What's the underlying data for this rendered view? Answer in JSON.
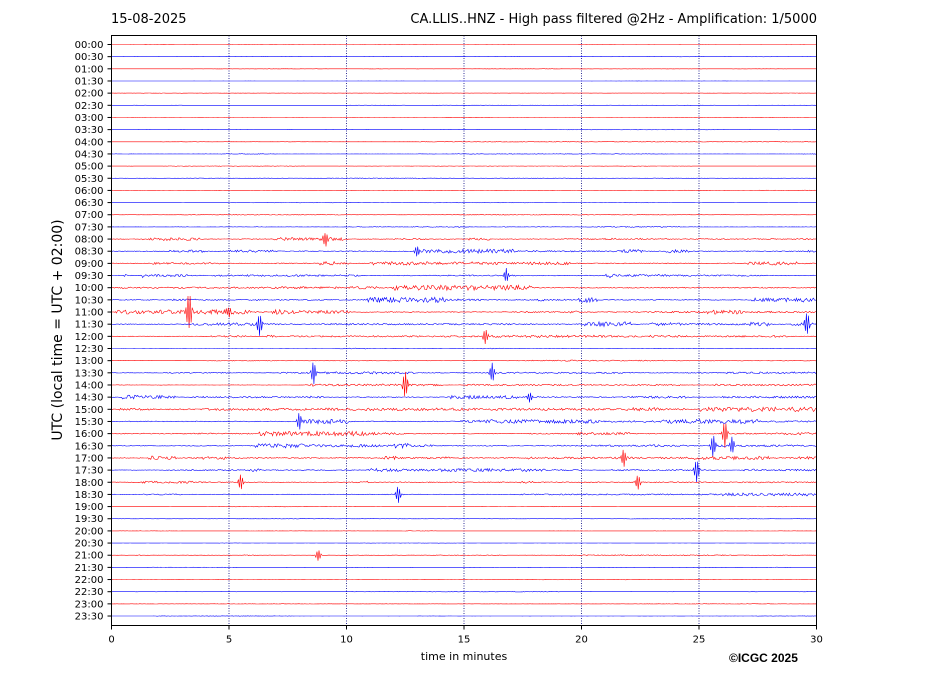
{
  "header": {
    "date": "15-08-2025",
    "title": "CA.LLIS..HNZ - High pass filtered @2Hz - Amplification: 1/5000"
  },
  "footer": {
    "copyright": "©ICGC 2025"
  },
  "chart_data": {
    "type": "line",
    "xlabel": "time in minutes",
    "ylabel": "UTC (local time = UTC + 02:00)",
    "xlim": [
      0,
      30
    ],
    "xticks": [
      0,
      5,
      10,
      15,
      20,
      25,
      30
    ],
    "grid": "vertical dotted lines at 5-minute intervals",
    "colors": {
      "even_rows": "#ff0000",
      "odd_rows": "#0000ff",
      "gridline": "#000080"
    },
    "rows": [
      {
        "label": "00:00",
        "activity": 0.05
      },
      {
        "label": "00:30",
        "activity": 0.05
      },
      {
        "label": "01:00",
        "activity": 0.05
      },
      {
        "label": "01:30",
        "activity": 0.05
      },
      {
        "label": "02:00",
        "activity": 0.05
      },
      {
        "label": "02:30",
        "activity": 0.05
      },
      {
        "label": "03:00",
        "activity": 0.05
      },
      {
        "label": "03:30",
        "activity": 0.08
      },
      {
        "label": "04:00",
        "activity": 0.08
      },
      {
        "label": "04:30",
        "activity": 0.1
      },
      {
        "label": "05:00",
        "activity": 0.08
      },
      {
        "label": "05:30",
        "activity": 0.1
      },
      {
        "label": "06:00",
        "activity": 0.1
      },
      {
        "label": "06:30",
        "activity": 0.1
      },
      {
        "label": "07:00",
        "activity": 0.15
      },
      {
        "label": "07:30",
        "activity": 0.2
      },
      {
        "label": "08:00",
        "activity": 0.6
      },
      {
        "label": "08:30",
        "activity": 0.9
      },
      {
        "label": "09:00",
        "activity": 0.8
      },
      {
        "label": "09:30",
        "activity": 0.8
      },
      {
        "label": "10:00",
        "activity": 0.85
      },
      {
        "label": "10:30",
        "activity": 0.95
      },
      {
        "label": "11:00",
        "activity": 0.85
      },
      {
        "label": "11:30",
        "activity": 0.9
      },
      {
        "label": "12:00",
        "activity": 0.4
      },
      {
        "label": "12:30",
        "activity": 0.2
      },
      {
        "label": "13:00",
        "activity": 0.2
      },
      {
        "label": "13:30",
        "activity": 0.4
      },
      {
        "label": "14:00",
        "activity": 0.45
      },
      {
        "label": "14:30",
        "activity": 0.7
      },
      {
        "label": "15:00",
        "activity": 0.85
      },
      {
        "label": "15:30",
        "activity": 0.9
      },
      {
        "label": "16:00",
        "activity": 0.9
      },
      {
        "label": "16:30",
        "activity": 0.85
      },
      {
        "label": "17:00",
        "activity": 0.8
      },
      {
        "label": "17:30",
        "activity": 0.6
      },
      {
        "label": "18:00",
        "activity": 0.5
      },
      {
        "label": "18:30",
        "activity": 0.55
      },
      {
        "label": "19:00",
        "activity": 0.1
      },
      {
        "label": "19:30",
        "activity": 0.1
      },
      {
        "label": "20:00",
        "activity": 0.08
      },
      {
        "label": "20:30",
        "activity": 0.08
      },
      {
        "label": "21:00",
        "activity": 0.2
      },
      {
        "label": "21:30",
        "activity": 0.08
      },
      {
        "label": "22:00",
        "activity": 0.1
      },
      {
        "label": "22:30",
        "activity": 0.08
      },
      {
        "label": "23:00",
        "activity": 0.08
      },
      {
        "label": "23:30",
        "activity": 0.08
      }
    ],
    "events": [
      {
        "row": "08:00",
        "minute": 9.1,
        "amp": 8
      },
      {
        "row": "08:30",
        "minute": 13.0,
        "amp": 6
      },
      {
        "row": "09:30",
        "minute": 16.8,
        "amp": 7
      },
      {
        "row": "11:00",
        "minute": 3.3,
        "amp": 22
      },
      {
        "row": "11:00",
        "minute": 5.0,
        "amp": 7
      },
      {
        "row": "11:30",
        "minute": 6.3,
        "amp": 12
      },
      {
        "row": "11:30",
        "minute": 29.6,
        "amp": 12
      },
      {
        "row": "12:00",
        "minute": 15.9,
        "amp": 8
      },
      {
        "row": "13:30",
        "minute": 8.6,
        "amp": 12
      },
      {
        "row": "13:30",
        "minute": 16.2,
        "amp": 10
      },
      {
        "row": "14:00",
        "minute": 12.5,
        "amp": 14
      },
      {
        "row": "14:30",
        "minute": 17.8,
        "amp": 6
      },
      {
        "row": "15:30",
        "minute": 8.0,
        "amp": 8
      },
      {
        "row": "16:00",
        "minute": 26.1,
        "amp": 14
      },
      {
        "row": "16:30",
        "minute": 25.6,
        "amp": 12
      },
      {
        "row": "16:30",
        "minute": 26.4,
        "amp": 9
      },
      {
        "row": "17:00",
        "minute": 21.8,
        "amp": 9
      },
      {
        "row": "17:30",
        "minute": 24.9,
        "amp": 12
      },
      {
        "row": "18:00",
        "minute": 22.4,
        "amp": 8
      },
      {
        "row": "18:00",
        "minute": 5.5,
        "amp": 8
      },
      {
        "row": "18:30",
        "minute": 12.2,
        "amp": 9
      },
      {
        "row": "21:00",
        "minute": 8.8,
        "amp": 6
      }
    ]
  }
}
